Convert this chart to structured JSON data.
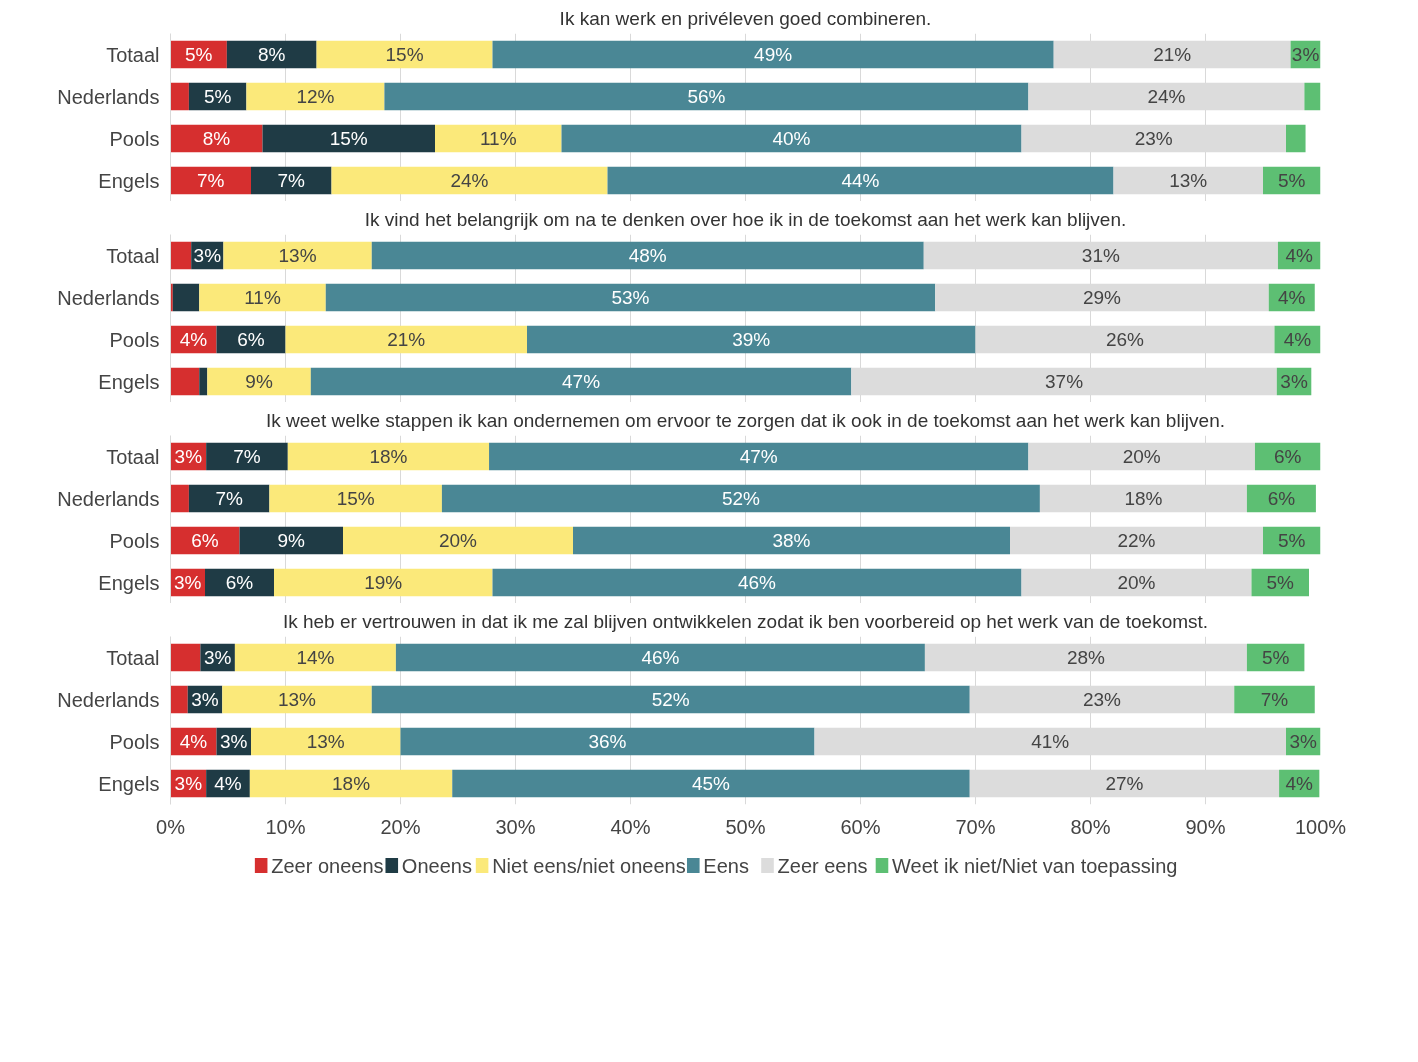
{
  "chart_data": [
    {
      "type": "bar",
      "orientation": "horizontal",
      "stacked": true,
      "title": "Ik kan werk en privéleven goed combineren.",
      "categories": [
        "Totaal",
        "Nederlands",
        "Pools",
        "Engels"
      ],
      "xlim": [
        0,
        100
      ],
      "xticks": [
        0,
        10,
        20,
        30,
        40,
        50,
        60,
        70,
        80,
        90,
        100
      ],
      "grid": "x",
      "tick_labels": "y",
      "series": [
        {
          "color": "#d62f2f",
          "values": [
            4.9,
            1.6,
            8,
            7
          ],
          "value_labels": [
            "5%",
            null,
            "8%",
            "7%"
          ]
        },
        {
          "color": "#1f3b45",
          "values": [
            7.8,
            5,
            15,
            7
          ],
          "value_labels": [
            "8%",
            "5%",
            "15%",
            "7%"
          ]
        },
        {
          "color": "#fbe97a",
          "values": [
            15.3,
            12,
            11,
            24
          ],
          "value_labels": [
            "15%",
            "12%",
            "11%",
            "24%"
          ]
        },
        {
          "color": "#4a8795",
          "values": [
            48.8,
            56,
            40,
            44
          ],
          "value_labels": [
            "49%",
            "56%",
            "40%",
            "44%"
          ]
        },
        {
          "color": "#dcdcdc",
          "values": [
            20.6,
            24,
            23,
            13
          ],
          "value_labels": [
            "21%",
            "24%",
            "23%",
            "13%"
          ]
        },
        {
          "color": "#5dbf73",
          "values": [
            2.6,
            1.4,
            1.7,
            5
          ],
          "value_labels": [
            "3%",
            null,
            null,
            "5%"
          ]
        }
      ]
    },
    {
      "type": "bar",
      "orientation": "horizontal",
      "stacked": true,
      "title": "Ik vind het belangrijk om na te denken over hoe ik in de toekomst aan het werk kan blijven.",
      "categories": [
        "Totaal",
        "Nederlands",
        "Pools",
        "Engels"
      ],
      "xlim": [
        0,
        100
      ],
      "xticks": [
        0,
        10,
        20,
        30,
        40,
        50,
        60,
        70,
        80,
        90,
        100
      ],
      "grid": "x",
      "tick_labels": "y",
      "series": [
        {
          "color": "#d62f2f",
          "values": [
            1.8,
            0.2,
            4,
            2.5
          ],
          "value_labels": [
            null,
            null,
            "4%",
            null
          ]
        },
        {
          "color": "#1f3b45",
          "values": [
            2.8,
            2.3,
            6,
            0.7
          ],
          "value_labels": [
            "3%",
            null,
            "6%",
            null
          ]
        },
        {
          "color": "#fbe97a",
          "values": [
            12.9,
            11,
            21,
            9
          ],
          "value_labels": [
            "13%",
            "11%",
            "21%",
            "9%"
          ]
        },
        {
          "color": "#4a8795",
          "values": [
            48,
            53,
            39,
            47
          ],
          "value_labels": [
            "48%",
            "53%",
            "39%",
            "47%"
          ]
        },
        {
          "color": "#dcdcdc",
          "values": [
            30.8,
            29,
            26,
            37
          ],
          "value_labels": [
            "31%",
            "29%",
            "26%",
            "37%"
          ]
        },
        {
          "color": "#5dbf73",
          "values": [
            3.7,
            4,
            4,
            3
          ],
          "value_labels": [
            "4%",
            "4%",
            "4%",
            "3%"
          ]
        }
      ]
    },
    {
      "type": "bar",
      "orientation": "horizontal",
      "stacked": true,
      "title": "Ik weet welke stappen ik kan ondernemen om ervoor te zorgen dat ik ook in de toekomst aan het werk kan blijven.",
      "categories": [
        "Totaal",
        "Nederlands",
        "Pools",
        "Engels"
      ],
      "xlim": [
        0,
        100
      ],
      "xticks": [
        0,
        10,
        20,
        30,
        40,
        50,
        60,
        70,
        80,
        90,
        100
      ],
      "grid": "x",
      "tick_labels": "y",
      "series": [
        {
          "color": "#d62f2f",
          "values": [
            3.1,
            1.6,
            6,
            3
          ],
          "value_labels": [
            "3%",
            null,
            "6%",
            "3%"
          ]
        },
        {
          "color": "#1f3b45",
          "values": [
            7.1,
            7,
            9,
            6
          ],
          "value_labels": [
            "7%",
            "7%",
            "9%",
            "6%"
          ]
        },
        {
          "color": "#fbe97a",
          "values": [
            17.5,
            15,
            20,
            19
          ],
          "value_labels": [
            "18%",
            "15%",
            "20%",
            "19%"
          ]
        },
        {
          "color": "#4a8795",
          "values": [
            46.9,
            52,
            38,
            46
          ],
          "value_labels": [
            "47%",
            "52%",
            "38%",
            "46%"
          ]
        },
        {
          "color": "#dcdcdc",
          "values": [
            19.7,
            18,
            22,
            20
          ],
          "value_labels": [
            "20%",
            "18%",
            "22%",
            "20%"
          ]
        },
        {
          "color": "#5dbf73",
          "values": [
            5.7,
            6,
            5,
            5
          ],
          "value_labels": [
            "6%",
            "6%",
            "5%",
            "5%"
          ]
        }
      ]
    },
    {
      "type": "bar",
      "orientation": "horizontal",
      "stacked": true,
      "title": "Ik heb er vertrouwen in dat ik me zal blijven ontwikkelen zodat ik ben voorbereid op het werk van de toekomst.",
      "categories": [
        "Totaal",
        "Nederlands",
        "Pools",
        "Engels"
      ],
      "xlim": [
        0,
        100
      ],
      "xticks": [
        {
          "value": 0,
          "label": "0%"
        },
        {
          "value": 10,
          "label": "10%"
        },
        {
          "value": 20,
          "label": "20%"
        },
        {
          "value": 30,
          "label": "30%"
        },
        {
          "value": 40,
          "label": "40%"
        },
        {
          "value": 50,
          "label": "50%"
        },
        {
          "value": 60,
          "label": "60%"
        },
        {
          "value": 70,
          "label": "70%"
        },
        {
          "value": 80,
          "label": "80%"
        },
        {
          "value": 90,
          "label": "90%"
        },
        {
          "value": 100,
          "label": "100%"
        }
      ],
      "grid": "x",
      "legend": "bottom",
      "series": [
        {
          "name": "Zeer oneens",
          "color": "#d62f2f",
          "values": [
            2.6,
            1.5,
            4,
            3.1
          ],
          "value_labels": [
            null,
            null,
            "4%",
            "3%"
          ]
        },
        {
          "name": "Oneens",
          "color": "#1f3b45",
          "values": [
            3,
            3,
            3,
            3.8
          ],
          "value_labels": [
            "3%",
            "3%",
            "3%",
            "4%"
          ]
        },
        {
          "name": "Niet eens/niet oneens",
          "color": "#fbe97a",
          "values": [
            14,
            13,
            13,
            17.6
          ],
          "value_labels": [
            "14%",
            "13%",
            "13%",
            "18%"
          ]
        },
        {
          "name": "Eens",
          "color": "#4a8795",
          "values": [
            46,
            52,
            36,
            45
          ],
          "value_labels": [
            "46%",
            "52%",
            "36%",
            "45%"
          ]
        },
        {
          "name": "Zeer eens",
          "color": "#dcdcdc",
          "values": [
            28,
            23,
            41,
            26.9
          ],
          "value_labels": [
            "28%",
            "23%",
            "41%",
            "27%"
          ]
        },
        {
          "name": "Weet ik niet/Niet van toepassing",
          "color": "#5dbf73",
          "values": [
            5,
            7,
            3,
            3.5
          ],
          "value_labels": [
            "5%",
            "7%",
            "3%",
            "4%"
          ]
        }
      ]
    }
  ]
}
